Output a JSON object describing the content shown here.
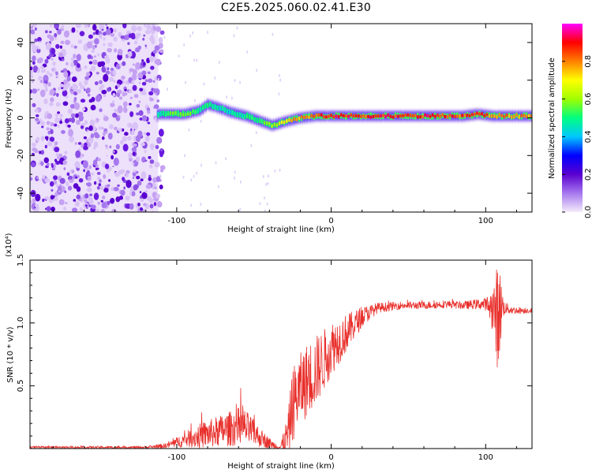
{
  "title": "C2E5.2025.060.02.41.E30",
  "chart_data": [
    {
      "type": "heatmap",
      "xlabel": "Height of straight line (km)",
      "ylabel": "Frequency (Hz)",
      "xlim": [
        -195,
        130
      ],
      "ylim": [
        -50,
        50
      ],
      "xticks": [
        -100,
        0,
        100
      ],
      "yticks": [
        -40,
        -20,
        0,
        20,
        40
      ],
      "colorbar": {
        "label": "Normalized spectral amplitude",
        "range": [
          0,
          1
        ],
        "ticks": [
          "0.0",
          "0.2",
          "0.4",
          "0.6",
          "0.8"
        ],
        "colors": [
          "#f4ecfb",
          "#a778ee",
          "#5a00d0",
          "#0000ff",
          "#00c8ff",
          "#00ff80",
          "#a0ff00",
          "#ffff00",
          "#ff8000",
          "#ff0000",
          "#ff00ff"
        ]
      },
      "noise_region": {
        "x_from": -195,
        "x_to": -112
      },
      "ridge": {
        "x": [
          -112,
          -105,
          -95,
          -85,
          -80,
          -75,
          -65,
          -55,
          -45,
          -38,
          -30,
          -20,
          -10,
          0,
          10,
          20,
          30,
          50,
          70,
          85,
          95,
          105,
          120,
          130
        ],
        "freq": [
          2,
          2,
          2,
          4,
          7,
          6,
          3,
          1,
          -2,
          -4,
          -2,
          0,
          1,
          1,
          1,
          1,
          1,
          1,
          1,
          1,
          2,
          1,
          1,
          1
        ],
        "amplitude": [
          0.45,
          0.55,
          0.6,
          0.5,
          0.5,
          0.45,
          0.45,
          0.5,
          0.55,
          0.6,
          0.7,
          0.8,
          0.85,
          0.9,
          0.9,
          0.85,
          0.9,
          0.9,
          0.9,
          0.85,
          0.9,
          0.8,
          0.8,
          0.8
        ]
      }
    },
    {
      "type": "line",
      "xlabel": "Height of straight line (km)",
      "ylabel": "SNR (10 * v/v)",
      "y_multiplier": "(x10⁴)",
      "xlim": [
        -195,
        130
      ],
      "ylim": [
        0,
        1.5
      ],
      "xticks": [
        -100,
        0,
        100
      ],
      "yticks": [
        "0.5",
        "1.0",
        "1.5"
      ],
      "color": "#e8302c",
      "envelope": {
        "x": [
          -195,
          -120,
          -108,
          -100,
          -92,
          -85,
          -75,
          -65,
          -58,
          -52,
          -45,
          -38,
          -33,
          -28,
          -25,
          -20,
          -15,
          -10,
          -5,
          0,
          10,
          20,
          30,
          45,
          60,
          75,
          85,
          95,
          100,
          104,
          106,
          108,
          110,
          112,
          118,
          130
        ],
        "mid": [
          0.01,
          0.01,
          0.02,
          0.05,
          0.08,
          0.1,
          0.13,
          0.16,
          0.18,
          0.14,
          0.08,
          0.03,
          0.01,
          0.1,
          0.35,
          0.48,
          0.55,
          0.62,
          0.7,
          0.8,
          0.92,
          1.05,
          1.12,
          1.14,
          1.14,
          1.15,
          1.14,
          1.15,
          1.15,
          1.12,
          1.08,
          1.05,
          1.12,
          1.12,
          1.1,
          1.1
        ],
        "amp": [
          0.01,
          0.01,
          0.02,
          0.04,
          0.07,
          0.1,
          0.12,
          0.14,
          0.16,
          0.12,
          0.07,
          0.03,
          0.02,
          0.18,
          0.3,
          0.28,
          0.3,
          0.28,
          0.25,
          0.22,
          0.15,
          0.08,
          0.04,
          0.03,
          0.03,
          0.03,
          0.03,
          0.04,
          0.05,
          0.15,
          0.3,
          0.45,
          0.25,
          0.05,
          0.03,
          0.02
        ]
      }
    }
  ]
}
